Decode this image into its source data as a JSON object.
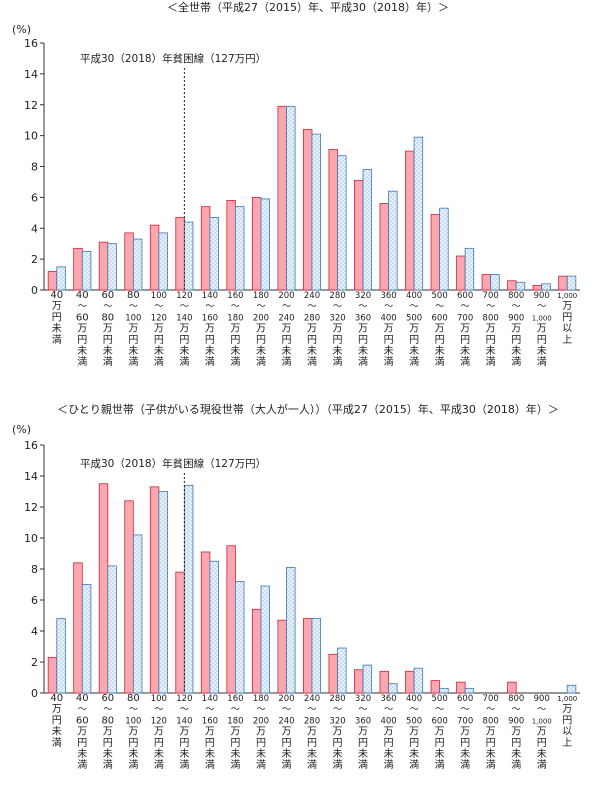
{
  "colors": {
    "series_2015_fill": "#fba7b0",
    "series_2015_stroke": "#d6203a",
    "series_2018_fill": "#c9ddf0",
    "series_2018_dot": "#ffffff",
    "series_2018_stroke": "#3b78b8"
  },
  "chart_data": [
    {
      "type": "bar",
      "title": "＜全世帯（平成27（2015）年、平成30（2018）年）＞",
      "ylabel": "(%)",
      "ylim": [
        0,
        16
      ],
      "yticks": [
        0,
        2,
        4,
        6,
        8,
        10,
        12,
        14,
        16
      ],
      "grid": false,
      "categories": [
        "40万円未満",
        "40〜60万円未満",
        "60〜80万円未満",
        "80〜100万円未満",
        "100〜120万円未満",
        "120〜140万円未満",
        "140〜160万円未満",
        "160〜180万円未満",
        "180〜200万円未満",
        "200〜240万円未満",
        "240〜280万円未満",
        "280〜320万円未満",
        "320〜360万円未満",
        "360〜400万円未満",
        "400〜500万円未満",
        "500〜600万円未満",
        "600〜700万円未満",
        "700〜800万円未満",
        "800〜900万円未満",
        "900〜1,000万円未満",
        "1,000万円以上"
      ],
      "category_lines": [
        [
          "40",
          "万",
          "円",
          "未",
          "満"
        ],
        [
          "40",
          "〜",
          "60",
          "万",
          "円",
          "未",
          "満"
        ],
        [
          "60",
          "〜",
          "80",
          "万",
          "円",
          "未",
          "満"
        ],
        [
          "80",
          "〜",
          "100",
          "万",
          "円",
          "未",
          "満"
        ],
        [
          "100",
          "〜",
          "120",
          "万",
          "円",
          "未",
          "満"
        ],
        [
          "120",
          "〜",
          "140",
          "万",
          "円",
          "未",
          "満"
        ],
        [
          "140",
          "〜",
          "160",
          "万",
          "円",
          "未",
          "満"
        ],
        [
          "160",
          "〜",
          "180",
          "万",
          "円",
          "未",
          "満"
        ],
        [
          "180",
          "〜",
          "200",
          "万",
          "円",
          "未",
          "満"
        ],
        [
          "200",
          "〜",
          "240",
          "万",
          "円",
          "未",
          "満"
        ],
        [
          "240",
          "〜",
          "280",
          "万",
          "円",
          "未",
          "満"
        ],
        [
          "280",
          "〜",
          "320",
          "万",
          "円",
          "未",
          "満"
        ],
        [
          "320",
          "〜",
          "360",
          "万",
          "円",
          "未",
          "満"
        ],
        [
          "360",
          "〜",
          "400",
          "万",
          "円",
          "未",
          "満"
        ],
        [
          "400",
          "〜",
          "500",
          "万",
          "円",
          "未",
          "満"
        ],
        [
          "500",
          "〜",
          "600",
          "万",
          "円",
          "未",
          "満"
        ],
        [
          "600",
          "〜",
          "700",
          "万",
          "円",
          "未",
          "満"
        ],
        [
          "700",
          "〜",
          "800",
          "万",
          "円",
          "未",
          "満"
        ],
        [
          "800",
          "〜",
          "900",
          "万",
          "円",
          "未",
          "満"
        ],
        [
          "900",
          "〜",
          "1,000",
          "万",
          "円",
          "未",
          "満"
        ],
        [
          "1,000",
          "万",
          "円",
          "以",
          "上"
        ]
      ],
      "series": [
        {
          "key": "2015",
          "values": [
            1.2,
            2.7,
            3.1,
            3.7,
            4.2,
            4.7,
            5.4,
            5.8,
            6.0,
            11.9,
            10.4,
            9.1,
            7.1,
            5.6,
            9.0,
            4.9,
            2.2,
            1.0,
            0.6,
            0.3,
            0.9
          ]
        },
        {
          "key": "2018",
          "values": [
            1.5,
            2.5,
            3.0,
            3.3,
            3.7,
            4.4,
            4.7,
            5.4,
            5.9,
            11.9,
            10.1,
            8.7,
            7.8,
            6.4,
            9.9,
            5.3,
            2.7,
            1.0,
            0.5,
            0.4,
            0.9
          ]
        }
      ],
      "annotation": {
        "text": "平成30（2018）年貧困線（127万円）",
        "x_category_index": 5
      }
    },
    {
      "type": "bar",
      "title": "＜ひとり親世帯（子供がいる現役世帯（大人が一人））（平成27（2015）年、平成30（2018）年）＞",
      "ylabel": "(%)",
      "ylim": [
        0,
        16
      ],
      "yticks": [
        0,
        2,
        4,
        6,
        8,
        10,
        12,
        14,
        16
      ],
      "grid": false,
      "categories": [
        "40万円未満",
        "40〜60万円未満",
        "60〜80万円未満",
        "80〜100万円未満",
        "100〜120万円未満",
        "120〜140万円未満",
        "140〜160万円未満",
        "160〜180万円未満",
        "180〜200万円未満",
        "200〜240万円未満",
        "240〜280万円未満",
        "280〜320万円未満",
        "320〜360万円未満",
        "360〜400万円未満",
        "400〜500万円未満",
        "500〜600万円未満",
        "600〜700万円未満",
        "700〜800万円未満",
        "800〜900万円未満",
        "900〜1,000万円未満",
        "1,000万円以上"
      ],
      "category_lines": [
        [
          "40",
          "万",
          "円",
          "未",
          "満"
        ],
        [
          "40",
          "〜",
          "60",
          "万",
          "円",
          "未",
          "満"
        ],
        [
          "60",
          "〜",
          "80",
          "万",
          "円",
          "未",
          "満"
        ],
        [
          "80",
          "〜",
          "100",
          "万",
          "円",
          "未",
          "満"
        ],
        [
          "100",
          "〜",
          "120",
          "万",
          "円",
          "未",
          "満"
        ],
        [
          "120",
          "〜",
          "140",
          "万",
          "円",
          "未",
          "満"
        ],
        [
          "140",
          "〜",
          "160",
          "万",
          "円",
          "未",
          "満"
        ],
        [
          "160",
          "〜",
          "180",
          "万",
          "円",
          "未",
          "満"
        ],
        [
          "180",
          "〜",
          "200",
          "万",
          "円",
          "未",
          "満"
        ],
        [
          "200",
          "〜",
          "240",
          "万",
          "円",
          "未",
          "満"
        ],
        [
          "240",
          "〜",
          "280",
          "万",
          "円",
          "未",
          "満"
        ],
        [
          "280",
          "〜",
          "320",
          "万",
          "円",
          "未",
          "満"
        ],
        [
          "320",
          "〜",
          "360",
          "万",
          "円",
          "未",
          "満"
        ],
        [
          "360",
          "〜",
          "400",
          "万",
          "円",
          "未",
          "満"
        ],
        [
          "400",
          "〜",
          "500",
          "万",
          "円",
          "未",
          "満"
        ],
        [
          "500",
          "〜",
          "600",
          "万",
          "円",
          "未",
          "満"
        ],
        [
          "600",
          "〜",
          "700",
          "万",
          "円",
          "未",
          "満"
        ],
        [
          "700",
          "〜",
          "800",
          "万",
          "円",
          "未",
          "満"
        ],
        [
          "800",
          "〜",
          "900",
          "万",
          "円",
          "未",
          "満"
        ],
        [
          "900",
          "〜",
          "1,000",
          "万",
          "円",
          "未",
          "満"
        ],
        [
          "1,000",
          "万",
          "円",
          "以",
          "上"
        ]
      ],
      "series": [
        {
          "key": "2015",
          "values": [
            2.3,
            8.4,
            13.5,
            12.4,
            13.3,
            7.8,
            9.1,
            9.5,
            5.4,
            4.7,
            4.8,
            2.5,
            1.5,
            1.4,
            1.4,
            0.8,
            0.7,
            0.0,
            0.7,
            0.0,
            0.0
          ]
        },
        {
          "key": "2018",
          "values": [
            4.8,
            7.0,
            8.2,
            10.2,
            13.0,
            13.4,
            8.5,
            7.2,
            6.9,
            8.1,
            4.8,
            2.9,
            1.8,
            0.6,
            1.6,
            0.3,
            0.3,
            0.0,
            0.0,
            0.0,
            0.5
          ]
        }
      ],
      "annotation": {
        "text": "平成30（2018）年貧困線（127万円）",
        "x_category_index": 5
      }
    }
  ]
}
